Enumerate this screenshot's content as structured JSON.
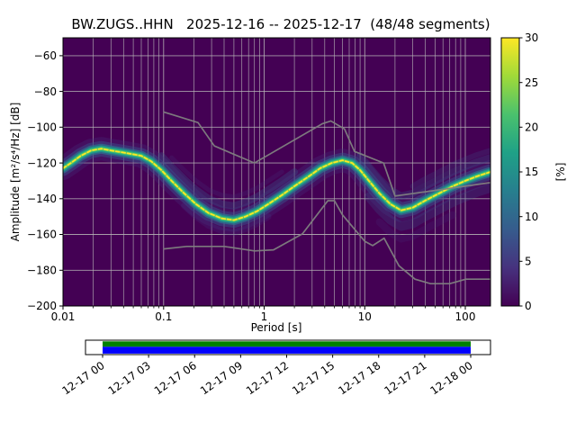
{
  "title": "BW.ZUGS..HHN   2025-12-16 -- 2025-12-17  (48/48 segments)",
  "chart_data": {
    "type": "heatmap",
    "title": "BW.ZUGS..HHN   2025-12-16 -- 2025-12-17  (48/48 segments)",
    "xlabel": "Period [s]",
    "ylabel": "Amplitude [m²/s⁴/Hz] [dB]",
    "colorbar_label": "[%]",
    "x_scale": "log",
    "xlim": [
      0.01,
      178
    ],
    "ylim": [
      -200,
      -50
    ],
    "grid": true,
    "x_ticks": [
      0.01,
      0.1,
      1,
      10,
      100
    ],
    "x_tick_labels": [
      "0.01",
      "0.1",
      "1",
      "10",
      "100"
    ],
    "y_ticks": [
      -60,
      -80,
      -100,
      -120,
      -140,
      -160,
      -180,
      -200
    ],
    "y_tick_labels": [
      "−60",
      "−80",
      "−100",
      "−120",
      "−140",
      "−160",
      "−180",
      "−200"
    ],
    "colorbar_range": [
      0,
      30
    ],
    "colorbar_ticks": [
      0,
      5,
      10,
      15,
      20,
      25,
      30
    ],
    "colorbar_tick_labels": [
      "0",
      "5",
      "10",
      "15",
      "20",
      "25",
      "30"
    ],
    "colormap": "viridis",
    "colormap_stops": [
      "#440154",
      "#46327e",
      "#365c8d",
      "#277f8e",
      "#1fa187",
      "#4ac16d",
      "#a0da39",
      "#fde725"
    ],
    "background_value_color": "#440154",
    "grid_color": "#b9b9b9",
    "noise_model_color": "#808080",
    "mode_curve": {
      "description": "Dominant PPSD probability ridge (period s, amplitude dB)",
      "points": [
        [
          0.01,
          -123
        ],
        [
          0.012,
          -120
        ],
        [
          0.015,
          -116
        ],
        [
          0.019,
          -113
        ],
        [
          0.024,
          -112
        ],
        [
          0.03,
          -113
        ],
        [
          0.038,
          -114
        ],
        [
          0.048,
          -115
        ],
        [
          0.06,
          -116
        ],
        [
          0.075,
          -119
        ],
        [
          0.095,
          -124
        ],
        [
          0.12,
          -130
        ],
        [
          0.16,
          -137
        ],
        [
          0.21,
          -143
        ],
        [
          0.28,
          -148
        ],
        [
          0.38,
          -151
        ],
        [
          0.5,
          -152
        ],
        [
          0.65,
          -150
        ],
        [
          0.85,
          -147
        ],
        [
          1.1,
          -143
        ],
        [
          1.5,
          -138
        ],
        [
          2.0,
          -133
        ],
        [
          2.7,
          -128
        ],
        [
          3.6,
          -123
        ],
        [
          4.7,
          -120
        ],
        [
          6.0,
          -118.5
        ],
        [
          7.5,
          -120
        ],
        [
          9.0,
          -124
        ],
        [
          11,
          -130
        ],
        [
          14,
          -137
        ],
        [
          18,
          -143
        ],
        [
          23,
          -146.5
        ],
        [
          30,
          -145
        ],
        [
          40,
          -141
        ],
        [
          55,
          -137
        ],
        [
          75,
          -133
        ],
        [
          100,
          -130
        ],
        [
          130,
          -127.5
        ],
        [
          178,
          -125
        ]
      ]
    },
    "noise_models": {
      "nhnm_points": [
        [
          0.1,
          -91.5
        ],
        [
          0.22,
          -97.4
        ],
        [
          0.32,
          -110.5
        ],
        [
          0.8,
          -120.0
        ],
        [
          3.8,
          -98.0
        ],
        [
          4.6,
          -96.5
        ],
        [
          6.3,
          -101.0
        ],
        [
          7.9,
          -113.5
        ],
        [
          15.4,
          -120.0
        ],
        [
          20.0,
          -138.5
        ],
        [
          178,
          -131.0
        ]
      ],
      "nlnm_points": [
        [
          0.1,
          -168.1
        ],
        [
          0.17,
          -166.7
        ],
        [
          0.4,
          -166.7
        ],
        [
          0.8,
          -169.2
        ],
        [
          1.24,
          -168.6
        ],
        [
          2.4,
          -159.7
        ],
        [
          4.3,
          -141.1
        ],
        [
          5.0,
          -141.1
        ],
        [
          6.0,
          -149.0
        ],
        [
          10.0,
          -163.8
        ],
        [
          12.0,
          -166.2
        ],
        [
          15.6,
          -162.1
        ],
        [
          21.9,
          -177.5
        ],
        [
          31.6,
          -185.0
        ],
        [
          45.0,
          -187.5
        ],
        [
          70.0,
          -187.5
        ],
        [
          101.0,
          -185.0
        ],
        [
          178,
          -185.0
        ]
      ]
    }
  },
  "timeline": {
    "tick_labels": [
      "12-17 00",
      "12-17 03",
      "12-17 06",
      "12-17 09",
      "12-17 12",
      "12-17 15",
      "12-17 18",
      "12-17 21",
      "12-18 00"
    ],
    "coverage_color_top": "#008000",
    "coverage_color_bottom": "#0000ff",
    "frame_color": "#000000"
  }
}
